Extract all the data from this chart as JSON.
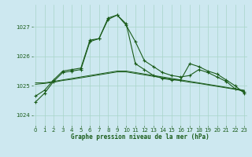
{
  "title": "Graphe pression niveau de la mer (hPa)",
  "background_color": "#cde8f0",
  "grid_color": "#a8d5c8",
  "line_color": "#1a5c1a",
  "x_ticks": [
    0,
    1,
    2,
    3,
    4,
    5,
    6,
    7,
    8,
    9,
    10,
    11,
    12,
    13,
    14,
    15,
    16,
    17,
    18,
    19,
    20,
    21,
    22,
    23
  ],
  "y_ticks": [
    1024,
    1025,
    1026,
    1027
  ],
  "ylim": [
    1023.65,
    1027.75
  ],
  "xlim": [
    -0.3,
    23.3
  ],
  "series1": [
    1024.65,
    1024.85,
    1025.2,
    1025.5,
    1025.55,
    1025.6,
    1026.55,
    1026.6,
    1027.25,
    1027.4,
    1027.05,
    1026.5,
    1025.85,
    1025.65,
    1025.45,
    1025.35,
    1025.3,
    1025.35,
    1025.55,
    1025.45,
    1025.3,
    1025.15,
    1024.9,
    1024.8
  ],
  "series2": [
    1024.45,
    1024.75,
    1025.15,
    1025.45,
    1025.5,
    1025.55,
    1026.5,
    1026.6,
    1027.3,
    1027.4,
    1027.1,
    1025.75,
    1025.55,
    1025.35,
    1025.25,
    1025.2,
    1025.2,
    1025.75,
    1025.65,
    1025.5,
    1025.4,
    1025.2,
    1025.0,
    1024.75
  ],
  "series3_flat": [
    1025.1,
    1025.1,
    1025.15,
    1025.2,
    1025.25,
    1025.3,
    1025.35,
    1025.4,
    1025.45,
    1025.5,
    1025.5,
    1025.45,
    1025.4,
    1025.35,
    1025.3,
    1025.25,
    1025.2,
    1025.15,
    1025.1,
    1025.05,
    1025.0,
    1024.95,
    1024.9,
    1024.85
  ],
  "series4_flat": [
    1025.05,
    1025.08,
    1025.12,
    1025.18,
    1025.22,
    1025.27,
    1025.32,
    1025.37,
    1025.42,
    1025.47,
    1025.47,
    1025.42,
    1025.37,
    1025.32,
    1025.27,
    1025.22,
    1025.17,
    1025.12,
    1025.08,
    1025.03,
    1024.98,
    1024.93,
    1024.88,
    1024.83
  ]
}
